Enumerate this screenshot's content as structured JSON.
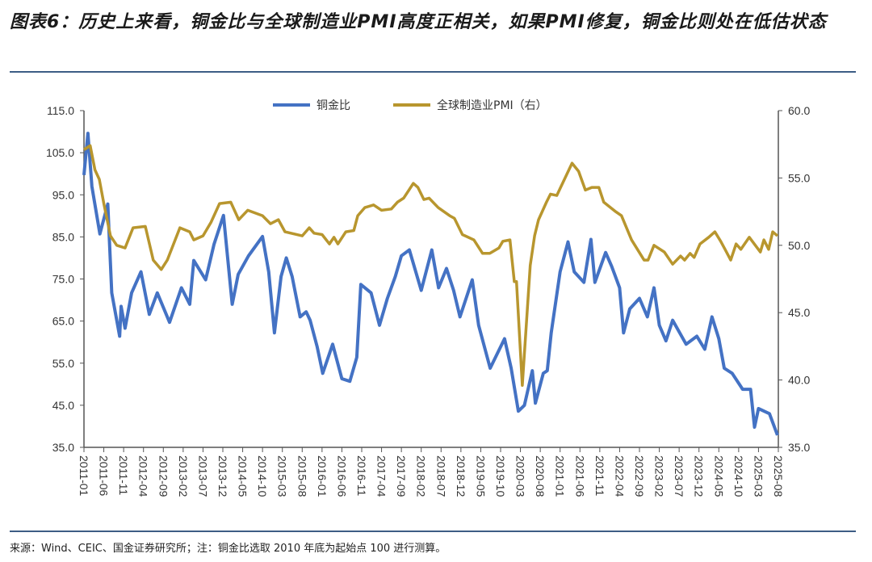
{
  "title": "图表6：历史上来看，铜金比与全球制造业PMI高度正相关，如果PMI修复，铜金比则处在低估状态",
  "footer": "来源：Wind、CEIC、国金证券研究所；注：铜金比选取 2010 年底为起始点 100 进行测算。",
  "colors": {
    "copper_gold": "#4472c4",
    "pmi": "#b8962e",
    "rule": "#3d5d85"
  },
  "chart_data": {
    "type": "line",
    "title": "",
    "legend_position": "top-center",
    "grid": false,
    "x_tick_labels": [
      "2011-01",
      "2011-06",
      "2011-11",
      "2012-04",
      "2012-09",
      "2013-02",
      "2013-07",
      "2013-12",
      "2014-05",
      "2014-10",
      "2015-03",
      "2015-08",
      "2016-01",
      "2016-06",
      "2016-11",
      "2017-04",
      "2017-09",
      "2018-02",
      "2018-07",
      "2018-12",
      "2019-05",
      "2019-10",
      "2020-03",
      "2020-08",
      "2021-01",
      "2021-06",
      "2021-11",
      "2022-04",
      "2022-09",
      "2023-02",
      "2023-07",
      "2023-12",
      "2024-05",
      "2024-10",
      "2025-03",
      "2025-08"
    ],
    "y_left": {
      "range": [
        35,
        115
      ],
      "ticks": [
        "35.0",
        "45.0",
        "55.0",
        "65.0",
        "75.0",
        "85.0",
        "95.0",
        "105.0",
        "115.0"
      ]
    },
    "y_right": {
      "range": [
        35,
        60
      ],
      "ticks": [
        "35.0",
        "40.0",
        "45.0",
        "50.0",
        "55.0",
        "60.0"
      ]
    },
    "series": [
      {
        "name": "铜金比",
        "axis": "left",
        "points": [
          [
            "2011-01-01",
            99.7
          ],
          [
            "2011-02-01",
            109.6
          ],
          [
            "2011-03-01",
            97
          ],
          [
            "2011-05-01",
            85.7
          ],
          [
            "2011-07-01",
            92.8
          ],
          [
            "2011-08-01",
            71.7
          ],
          [
            "2011-10-01",
            61.4
          ],
          [
            "2011-10-12",
            68.5
          ],
          [
            "2011-11-12",
            63.3
          ],
          [
            "2012-01-01",
            71.7
          ],
          [
            "2012-03-12",
            76.7
          ],
          [
            "2012-05-15",
            66.6
          ],
          [
            "2012-07-15",
            71.7
          ],
          [
            "2012-10-18",
            64.7
          ],
          [
            "2013-01-18",
            72.9
          ],
          [
            "2013-03-21",
            69
          ],
          [
            "2013-04-21",
            79.4
          ],
          [
            "2013-07-21",
            74.8
          ],
          [
            "2013-09-24",
            83.2
          ],
          [
            "2013-12-06",
            90.1
          ],
          [
            "2014-02-12",
            69
          ],
          [
            "2014-03-27",
            76.1
          ],
          [
            "2014-06-15",
            80.5
          ],
          [
            "2014-10-01",
            85.1
          ],
          [
            "2014-11-18",
            76.7
          ],
          [
            "2015-01-01",
            62.2
          ],
          [
            "2015-02-21",
            75.6
          ],
          [
            "2015-04-01",
            80
          ],
          [
            "2015-05-15",
            75.6
          ],
          [
            "2015-07-15",
            66
          ],
          [
            "2015-09-01",
            67.2
          ],
          [
            "2015-10-01",
            65.2
          ],
          [
            "2015-11-24",
            58.9
          ],
          [
            "2016-01-06",
            52.6
          ],
          [
            "2016-03-21",
            59.5
          ],
          [
            "2016-06-01",
            51.3
          ],
          [
            "2016-08-01",
            50.7
          ],
          [
            "2016-09-24",
            56.4
          ],
          [
            "2016-10-24",
            73.7
          ],
          [
            "2017-01-12",
            71.7
          ],
          [
            "2017-03-15",
            64
          ],
          [
            "2017-05-15",
            70.4
          ],
          [
            "2017-07-15",
            75.6
          ],
          [
            "2017-09-01",
            80.5
          ],
          [
            "2017-11-01",
            81.9
          ],
          [
            "2018-02-01",
            72.3
          ],
          [
            "2018-04-21",
            81.9
          ],
          [
            "2018-06-12",
            72.9
          ],
          [
            "2018-08-12",
            77.5
          ],
          [
            "2018-10-06",
            72.3
          ],
          [
            "2018-11-24",
            66
          ],
          [
            "2019-02-27",
            74.8
          ],
          [
            "2019-04-15",
            64
          ],
          [
            "2019-07-12",
            53.8
          ],
          [
            "2019-11-01",
            60.8
          ],
          [
            "2019-12-21",
            53.8
          ],
          [
            "2020-02-15",
            43.6
          ],
          [
            "2020-04-01",
            45
          ],
          [
            "2020-06-01",
            53.2
          ],
          [
            "2020-06-24",
            45.5
          ],
          [
            "2020-08-24",
            52.6
          ],
          [
            "2020-09-24",
            53.2
          ],
          [
            "2020-10-24",
            62.2
          ],
          [
            "2021-01-01",
            76.7
          ],
          [
            "2021-03-01",
            83.8
          ],
          [
            "2021-04-18",
            76.7
          ],
          [
            "2021-07-01",
            74.2
          ],
          [
            "2021-08-24",
            84.4
          ],
          [
            "2021-09-24",
            74.2
          ],
          [
            "2021-12-15",
            81.3
          ],
          [
            "2022-02-01",
            78
          ],
          [
            "2022-04-01",
            72.9
          ],
          [
            "2022-05-01",
            62.2
          ],
          [
            "2022-06-18",
            67.9
          ],
          [
            "2022-09-01",
            70.4
          ],
          [
            "2022-11-01",
            66
          ],
          [
            "2022-12-21",
            72.9
          ],
          [
            "2023-02-01",
            64
          ],
          [
            "2023-03-21",
            60.3
          ],
          [
            "2023-05-12",
            65.2
          ],
          [
            "2023-08-24",
            59.5
          ],
          [
            "2023-11-15",
            61.4
          ],
          [
            "2024-01-15",
            58.3
          ],
          [
            "2024-03-09",
            66
          ],
          [
            "2024-05-01",
            60.8
          ],
          [
            "2024-06-12",
            53.8
          ],
          [
            "2024-08-12",
            52.6
          ],
          [
            "2024-11-01",
            48.8
          ],
          [
            "2025-01-01",
            48.8
          ],
          [
            "2025-02-01",
            39.8
          ],
          [
            "2025-03-01",
            44.2
          ],
          [
            "2025-05-24",
            43
          ],
          [
            "2025-07-24",
            37.9
          ]
        ]
      },
      {
        "name": "全球制造业PMI（右）",
        "axis": "right",
        "points": [
          [
            "2011-01-01",
            57.1
          ],
          [
            "2011-02-18",
            57.4
          ],
          [
            "2011-03-24",
            55.6
          ],
          [
            "2011-04-27",
            54.9
          ],
          [
            "2011-06-01",
            53.1
          ],
          [
            "2011-07-21",
            50.7
          ],
          [
            "2011-09-09",
            50.0
          ],
          [
            "2011-11-12",
            49.8
          ],
          [
            "2012-01-12",
            51.3
          ],
          [
            "2012-04-15",
            51.4
          ],
          [
            "2012-06-15",
            48.9
          ],
          [
            "2012-08-15",
            48.2
          ],
          [
            "2012-10-01",
            48.9
          ],
          [
            "2013-01-06",
            51.3
          ],
          [
            "2013-03-21",
            51.0
          ],
          [
            "2013-04-21",
            50.4
          ],
          [
            "2013-07-01",
            50.7
          ],
          [
            "2013-09-01",
            51.7
          ],
          [
            "2013-11-06",
            53.1
          ],
          [
            "2014-02-01",
            53.2
          ],
          [
            "2014-04-01",
            51.9
          ],
          [
            "2014-06-09",
            52.6
          ],
          [
            "2014-10-01",
            52.2
          ],
          [
            "2014-12-01",
            51.6
          ],
          [
            "2015-02-01",
            51.9
          ],
          [
            "2015-03-21",
            51.0
          ],
          [
            "2015-08-01",
            50.7
          ],
          [
            "2015-09-24",
            51.3
          ],
          [
            "2015-11-01",
            50.9
          ],
          [
            "2016-01-01",
            50.8
          ],
          [
            "2016-02-27",
            50.1
          ],
          [
            "2016-04-01",
            50.6
          ],
          [
            "2016-05-01",
            50.1
          ],
          [
            "2016-07-01",
            51.0
          ],
          [
            "2016-09-01",
            51.1
          ],
          [
            "2016-10-01",
            52.2
          ],
          [
            "2016-11-24",
            52.8
          ],
          [
            "2017-02-01",
            53.0
          ],
          [
            "2017-04-01",
            52.6
          ],
          [
            "2017-06-15",
            52.7
          ],
          [
            "2017-08-01",
            53.2
          ],
          [
            "2017-09-18",
            53.5
          ],
          [
            "2017-12-01",
            54.6
          ],
          [
            "2018-01-06",
            54.3
          ],
          [
            "2018-02-21",
            53.4
          ],
          [
            "2018-04-01",
            53.5
          ],
          [
            "2018-06-09",
            52.8
          ],
          [
            "2018-09-06",
            52.2
          ],
          [
            "2018-10-12",
            52.0
          ],
          [
            "2018-12-12",
            50.8
          ],
          [
            "2019-03-09",
            50.4
          ],
          [
            "2019-05-15",
            49.4
          ],
          [
            "2019-07-09",
            49.4
          ],
          [
            "2019-09-18",
            49.8
          ],
          [
            "2019-10-18",
            50.3
          ],
          [
            "2019-12-12",
            50.4
          ],
          [
            "2020-01-15",
            47.3
          ],
          [
            "2020-02-01",
            47.3
          ],
          [
            "2020-03-15",
            39.6
          ],
          [
            "2020-05-15",
            48.5
          ],
          [
            "2020-06-18",
            50.7
          ],
          [
            "2020-07-18",
            51.9
          ],
          [
            "2020-09-18",
            53.2
          ],
          [
            "2020-10-18",
            53.8
          ],
          [
            "2020-12-06",
            53.7
          ],
          [
            "2021-04-01",
            56.1
          ],
          [
            "2021-05-21",
            55.5
          ],
          [
            "2021-07-12",
            54.1
          ],
          [
            "2021-09-01",
            54.3
          ],
          [
            "2021-10-24",
            54.3
          ],
          [
            "2021-12-01",
            53.2
          ],
          [
            "2022-03-01",
            52.5
          ],
          [
            "2022-04-15",
            52.2
          ],
          [
            "2022-07-01",
            50.4
          ],
          [
            "2022-10-06",
            48.9
          ],
          [
            "2022-11-06",
            48.9
          ],
          [
            "2022-12-21",
            50.0
          ],
          [
            "2023-03-09",
            49.5
          ],
          [
            "2023-05-12",
            48.6
          ],
          [
            "2023-07-12",
            49.2
          ],
          [
            "2023-08-12",
            48.9
          ],
          [
            "2023-09-24",
            49.4
          ],
          [
            "2023-10-24",
            49.1
          ],
          [
            "2023-12-09",
            50.1
          ],
          [
            "2024-02-15",
            50.6
          ],
          [
            "2024-04-01",
            51.0
          ],
          [
            "2024-05-15",
            50.3
          ],
          [
            "2024-06-18",
            49.7
          ],
          [
            "2024-08-01",
            48.9
          ],
          [
            "2024-09-12",
            50.1
          ],
          [
            "2024-10-18",
            49.7
          ],
          [
            "2024-12-21",
            50.6
          ],
          [
            "2025-03-15",
            49.5
          ],
          [
            "2025-04-12",
            50.4
          ],
          [
            "2025-05-18",
            49.7
          ],
          [
            "2025-06-18",
            51.0
          ],
          [
            "2025-07-24",
            50.7
          ]
        ]
      }
    ]
  }
}
